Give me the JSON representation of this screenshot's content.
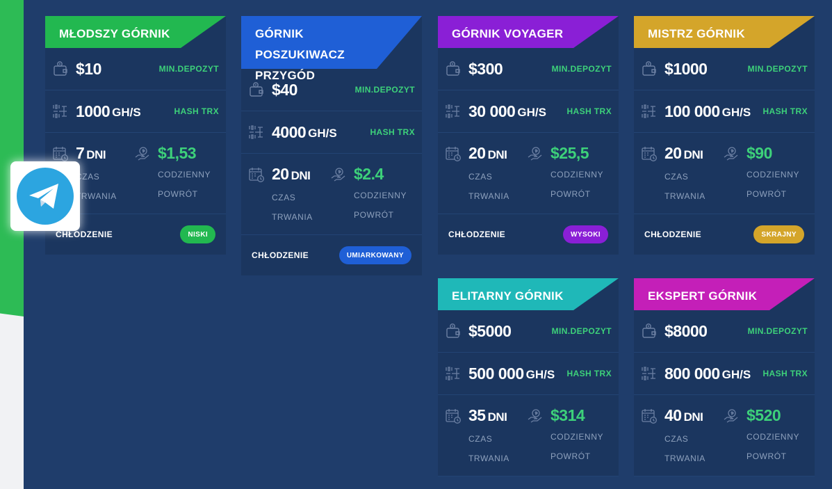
{
  "cards": [
    {
      "title": "MŁODSZY GÓRNIK",
      "header_color": "#22b850",
      "header_color2": "#1a9e45",
      "deposit": "$10",
      "deposit_label": "MIN.DEPOZYT",
      "hash": "1000",
      "hash_unit": "GH/S",
      "hash_label": "HASH TRX",
      "days": "7",
      "days_unit": "DNI",
      "days_label1": "CZAS",
      "days_label2": "TRWANIA",
      "daily": "$1,53",
      "daily_label1": "CODZIENNY",
      "daily_label2": "POWRÓT",
      "cooling_label": "CHŁODZENIE",
      "cooling": "NISKI",
      "pill_color": "#22b850"
    },
    {
      "title": "GÓRNIK POSZUKIWACZ PRZYGÓD",
      "header_color": "#1f5fd6",
      "header_color2": "#1a48b0",
      "deposit": "$40",
      "deposit_label": "MIN.DEPOZYT",
      "hash": "4000",
      "hash_unit": "GH/S",
      "hash_label": "HASH TRX",
      "days": "20",
      "days_unit": "DNI",
      "days_label1": "CZAS",
      "days_label2": "TRWANIA",
      "daily": "$2.4",
      "daily_label1": "CODZIENNY",
      "daily_label2": "POWRÓT",
      "cooling_label": "CHŁODZENIE",
      "cooling": "UMIARKOWANY",
      "pill_color": "#1f5fd6"
    },
    {
      "title": "GÓRNIK VOYAGER",
      "header_color": "#8a1fd6",
      "header_color2": "#7318b8",
      "deposit": "$300",
      "deposit_label": "MIN.DEPOZYT",
      "hash": "30 000",
      "hash_unit": "GH/S",
      "hash_label": "HASH TRX",
      "days": "20",
      "days_unit": "DNI",
      "days_label1": "CZAS",
      "days_label2": "TRWANIA",
      "daily": "$25,5",
      "daily_label1": "CODZIENNY",
      "daily_label2": "POWRÓT",
      "cooling_label": "CHŁODZENIE",
      "cooling": "WYSOKI",
      "pill_color": "#8a1fd6"
    },
    {
      "title": "MISTRZ GÓRNIK",
      "header_color": "#d4a52a",
      "header_color2": "#b98d1f",
      "deposit": "$1000",
      "deposit_label": "MIN.DEPOZYT",
      "hash": "100 000",
      "hash_unit": "GH/S",
      "hash_label": "HASH TRX",
      "days": "20",
      "days_unit": "DNI",
      "days_label1": "CZAS",
      "days_label2": "TRWANIA",
      "daily": "$90",
      "daily_label1": "CODZIENNY",
      "daily_label2": "POWRÓT",
      "cooling_label": "CHŁODZENIE",
      "cooling": "SKRAJNY",
      "pill_color": "#d4a52a"
    },
    {
      "title": "ELITARNY GÓRNIK",
      "header_color": "#1fb8b8",
      "header_color2": "#179c9f",
      "deposit": "$5000",
      "deposit_label": "MIN.DEPOZYT",
      "hash": "500 000",
      "hash_unit": "GH/S",
      "hash_label": "HASH TRX",
      "days": "35",
      "days_unit": "DNI",
      "days_label1": "CZAS",
      "days_label2": "TRWANIA",
      "daily": "$314",
      "daily_label1": "CODZIENNY",
      "daily_label2": "POWRÓT"
    },
    {
      "title": "EKSPERT GÓRNIK",
      "header_color": "#c41fb8",
      "header_color2": "#a8189f",
      "deposit": "$8000",
      "deposit_label": "MIN.DEPOZYT",
      "hash": "800 000",
      "hash_unit": "GH/S",
      "hash_label": "HASH TRX",
      "days": "40",
      "days_unit": "DNI",
      "days_label1": "CZAS",
      "days_label2": "TRWANIA",
      "daily": "$520",
      "daily_label1": "CODZIENNY",
      "daily_label2": "POWRÓT"
    }
  ],
  "telegram": {
    "icon": "telegram-icon",
    "color": "#2ca5e0"
  }
}
